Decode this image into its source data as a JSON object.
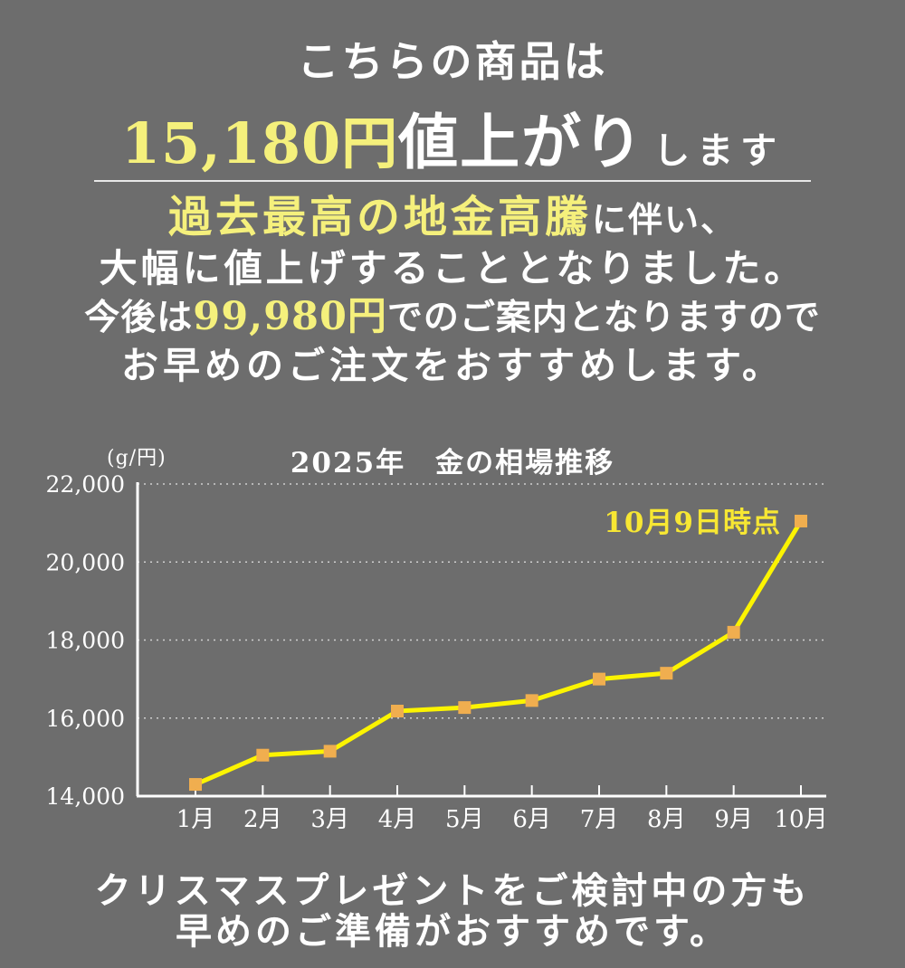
{
  "colors": {
    "background": "#6d6d6d",
    "text_white": "#ffffff",
    "accent_pale_yellow": "#f5f07c",
    "chart_line_yellow": "#fcf400",
    "chart_marker_orange": "#f0ae4f",
    "annotation_yellow": "#f7e733"
  },
  "header": {
    "line1": "こちらの商品は",
    "price_amount": "15,180円",
    "price_verb": "値上がり",
    "price_suffix": "します"
  },
  "body_copy": {
    "line1_highlight": "過去最高の地金高騰",
    "line1_rest": "に伴い、",
    "line2": "大幅に値上げすることとなりました。",
    "line3_prefix": "今後は",
    "line3_price": "99,980円",
    "line3_suffix": "でのご案内となりますので",
    "line4": "お早めのご注文をおすすめします。"
  },
  "chart_data": {
    "type": "line",
    "title": "2025年　金の相場推移",
    "unit_label": "(g/円)",
    "categories": [
      "1月",
      "2月",
      "3月",
      "4月",
      "5月",
      "6月",
      "7月",
      "8月",
      "9月",
      "10月"
    ],
    "values": [
      14300,
      15050,
      15150,
      16180,
      16270,
      16450,
      17000,
      17150,
      18200,
      21050
    ],
    "ylim": [
      14000,
      22000
    ],
    "yticks": [
      {
        "value": 14000,
        "label": "14,000"
      },
      {
        "value": 16000,
        "label": "16,000"
      },
      {
        "value": 18000,
        "label": "18,000"
      },
      {
        "value": 20000,
        "label": "20,000"
      },
      {
        "value": 22000,
        "label": "22,000"
      }
    ],
    "grid": true,
    "legend": "none",
    "annotation": {
      "label": "10月9日時点",
      "target_category": "10月"
    }
  },
  "footer": {
    "line1": "クリスマスプレゼントをご検討中の方も",
    "line2": "早めのご準備がおすすめです。"
  }
}
